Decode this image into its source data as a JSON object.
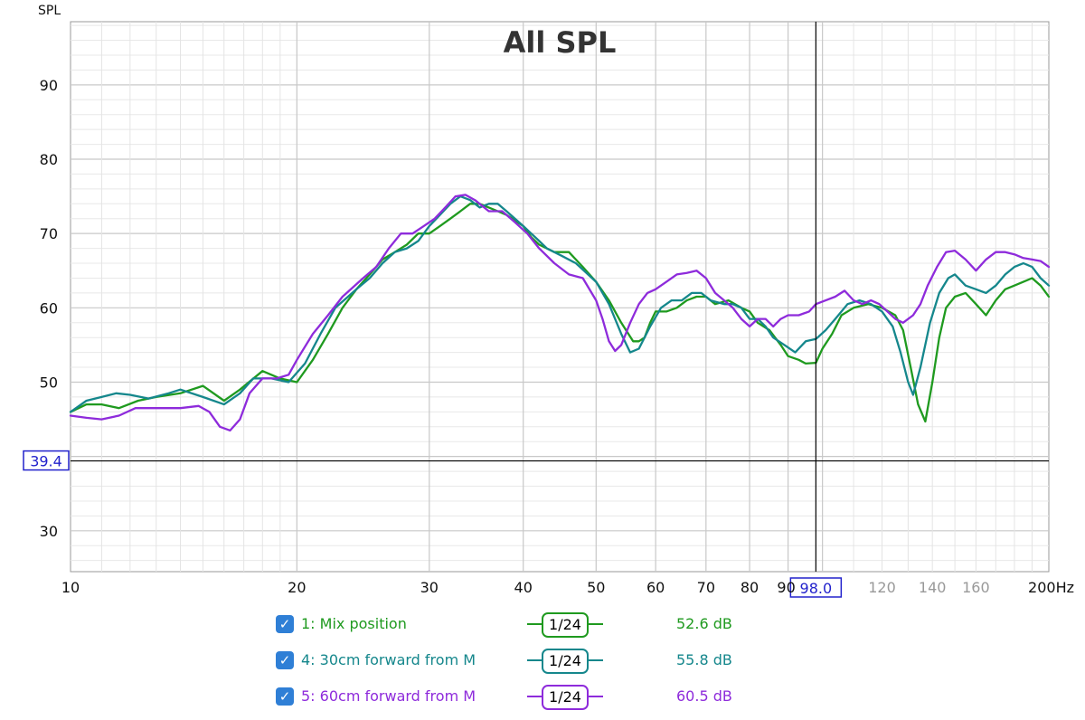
{
  "chart_data": {
    "type": "line",
    "title": "All SPL",
    "ylabel": "SPL",
    "x_unit": "Hz",
    "x_scale": "log",
    "xlim": [
      10,
      200
    ],
    "ylim": [
      24.5,
      98.5
    ],
    "grid": true,
    "x_ticks": [
      {
        "v": 10,
        "label": "10",
        "minor": false
      },
      {
        "v": 20,
        "label": "20",
        "minor": false
      },
      {
        "v": 30,
        "label": "30",
        "minor": false
      },
      {
        "v": 40,
        "label": "40",
        "minor": false
      },
      {
        "v": 50,
        "label": "50",
        "minor": false
      },
      {
        "v": 60,
        "label": "60",
        "minor": false
      },
      {
        "v": 70,
        "label": "70",
        "minor": false
      },
      {
        "v": 80,
        "label": "80",
        "minor": false
      },
      {
        "v": 90,
        "label": "90",
        "minor": false
      },
      {
        "v": 120,
        "label": "120",
        "minor": true
      },
      {
        "v": 140,
        "label": "140",
        "minor": true
      },
      {
        "v": 160,
        "label": "160",
        "minor": true
      },
      {
        "v": 200,
        "label": "200Hz",
        "minor": false
      }
    ],
    "y_ticks": [
      {
        "v": 30,
        "label": "30"
      },
      {
        "v": 50,
        "label": "50"
      },
      {
        "v": 60,
        "label": "60"
      },
      {
        "v": 70,
        "label": "70"
      },
      {
        "v": 80,
        "label": "80"
      },
      {
        "v": 90,
        "label": "90"
      }
    ],
    "cursor": {
      "x": 98.0,
      "x_label": "98.0",
      "y": 39.4,
      "y_label": "39.4"
    },
    "series": [
      {
        "name": "1: Mix position",
        "color": "#1f9a1f",
        "points": [
          [
            10,
            46
          ],
          [
            10.5,
            47
          ],
          [
            11,
            47
          ],
          [
            11.6,
            46.5
          ],
          [
            12.3,
            47.5
          ],
          [
            13,
            48
          ],
          [
            14,
            48.5
          ],
          [
            15,
            49.5
          ],
          [
            16,
            47.5
          ],
          [
            16.8,
            49
          ],
          [
            18,
            51.5
          ],
          [
            19,
            50.5
          ],
          [
            20,
            50
          ],
          [
            21,
            53
          ],
          [
            22,
            56.5
          ],
          [
            23,
            60
          ],
          [
            24,
            62.5
          ],
          [
            25,
            64.5
          ],
          [
            26,
            66.5
          ],
          [
            27,
            67.5
          ],
          [
            28,
            68.5
          ],
          [
            29,
            70
          ],
          [
            30,
            70
          ],
          [
            31,
            71
          ],
          [
            32,
            72
          ],
          [
            33,
            73
          ],
          [
            34,
            74
          ],
          [
            35,
            74
          ],
          [
            36,
            73.5
          ],
          [
            37,
            73
          ],
          [
            38,
            72.5
          ],
          [
            40,
            71
          ],
          [
            41,
            69.5
          ],
          [
            42,
            68.5
          ],
          [
            43,
            68
          ],
          [
            44,
            67.5
          ],
          [
            45,
            67.5
          ],
          [
            46,
            67.5
          ],
          [
            47,
            66.5
          ],
          [
            48,
            65.5
          ],
          [
            50,
            63.5
          ],
          [
            52,
            61
          ],
          [
            54,
            58
          ],
          [
            56,
            55.5
          ],
          [
            57,
            55.5
          ],
          [
            58,
            56
          ],
          [
            59,
            58
          ],
          [
            60,
            59.5
          ],
          [
            62,
            59.5
          ],
          [
            64,
            60
          ],
          [
            66,
            61
          ],
          [
            68,
            61.5
          ],
          [
            70,
            61.5
          ],
          [
            72,
            60.5
          ],
          [
            75,
            61
          ],
          [
            78,
            60
          ],
          [
            80,
            59.5
          ],
          [
            82,
            58
          ],
          [
            85,
            57
          ],
          [
            88,
            55
          ],
          [
            90,
            53.5
          ],
          [
            93,
            53
          ],
          [
            95,
            52.5
          ],
          [
            98,
            52.6
          ],
          [
            100,
            54.5
          ],
          [
            103,
            56.5
          ],
          [
            106,
            59
          ],
          [
            110,
            60
          ],
          [
            115,
            60.5
          ],
          [
            120,
            60
          ],
          [
            125,
            59
          ],
          [
            128,
            57
          ],
          [
            131,
            52
          ],
          [
            134,
            47
          ],
          [
            137,
            44.7
          ],
          [
            140,
            50
          ],
          [
            143,
            56
          ],
          [
            146,
            60
          ],
          [
            150,
            61.5
          ],
          [
            155,
            62
          ],
          [
            160,
            60.5
          ],
          [
            165,
            59
          ],
          [
            170,
            61
          ],
          [
            175,
            62.5
          ],
          [
            180,
            63
          ],
          [
            185,
            63.5
          ],
          [
            190,
            64
          ],
          [
            195,
            63
          ],
          [
            200,
            61.5
          ]
        ]
      },
      {
        "name": "4: 30cm forward from M",
        "color": "#15878c",
        "points": [
          [
            10,
            46
          ],
          [
            10.5,
            47.5
          ],
          [
            11,
            48
          ],
          [
            11.5,
            48.5
          ],
          [
            12,
            48.3
          ],
          [
            12.7,
            47.8
          ],
          [
            13.5,
            48.5
          ],
          [
            14,
            49
          ],
          [
            15,
            48
          ],
          [
            16,
            47
          ],
          [
            16.8,
            48.5
          ],
          [
            17.5,
            50.5
          ],
          [
            18.5,
            50.5
          ],
          [
            19.5,
            50
          ],
          [
            20.5,
            52.5
          ],
          [
            21.5,
            56.5
          ],
          [
            22.5,
            60
          ],
          [
            24,
            62.5
          ],
          [
            25,
            64
          ],
          [
            26,
            66
          ],
          [
            27,
            67.5
          ],
          [
            28,
            68
          ],
          [
            29,
            69
          ],
          [
            30,
            71
          ],
          [
            31,
            72.5
          ],
          [
            32,
            74
          ],
          [
            33,
            75
          ],
          [
            34,
            74.5
          ],
          [
            35,
            73.5
          ],
          [
            36,
            74
          ],
          [
            37,
            74
          ],
          [
            38,
            73
          ],
          [
            40,
            71
          ],
          [
            42,
            69
          ],
          [
            43,
            68
          ],
          [
            45,
            67
          ],
          [
            47,
            66
          ],
          [
            50,
            63.5
          ],
          [
            52,
            60.5
          ],
          [
            54,
            56.5
          ],
          [
            55.5,
            54
          ],
          [
            57,
            54.5
          ],
          [
            59,
            57.5
          ],
          [
            61,
            60
          ],
          [
            63,
            61
          ],
          [
            65,
            61
          ],
          [
            67,
            62
          ],
          [
            69,
            62
          ],
          [
            71,
            61
          ],
          [
            74,
            60.5
          ],
          [
            76,
            60.5
          ],
          [
            78,
            60
          ],
          [
            80,
            58.5
          ],
          [
            82,
            58.5
          ],
          [
            84,
            57.5
          ],
          [
            86,
            56
          ],
          [
            89,
            55
          ],
          [
            92,
            54
          ],
          [
            95,
            55.5
          ],
          [
            98,
            55.8
          ],
          [
            101,
            57
          ],
          [
            104,
            58.5
          ],
          [
            108,
            60.5
          ],
          [
            112,
            61
          ],
          [
            116,
            60.5
          ],
          [
            120,
            59.5
          ],
          [
            124,
            57.5
          ],
          [
            127,
            54
          ],
          [
            130,
            50
          ],
          [
            132,
            48.3
          ],
          [
            135,
            52
          ],
          [
            139,
            58
          ],
          [
            143,
            62
          ],
          [
            147,
            64
          ],
          [
            150,
            64.5
          ],
          [
            155,
            63
          ],
          [
            160,
            62.5
          ],
          [
            165,
            62
          ],
          [
            170,
            63
          ],
          [
            175,
            64.5
          ],
          [
            180,
            65.5
          ],
          [
            185,
            66
          ],
          [
            190,
            65.5
          ],
          [
            195,
            64
          ],
          [
            200,
            63
          ]
        ]
      },
      {
        "name": "5: 60cm forward from M",
        "color": "#8e2bdb",
        "points": [
          [
            10,
            45.5
          ],
          [
            10.5,
            45.2
          ],
          [
            11,
            45
          ],
          [
            11.6,
            45.5
          ],
          [
            12.2,
            46.5
          ],
          [
            13,
            46.5
          ],
          [
            14,
            46.5
          ],
          [
            14.8,
            46.8
          ],
          [
            15.3,
            46
          ],
          [
            15.8,
            44
          ],
          [
            16.3,
            43.5
          ],
          [
            16.8,
            45
          ],
          [
            17.3,
            48.5
          ],
          [
            18,
            50.5
          ],
          [
            18.8,
            50.5
          ],
          [
            19.5,
            51
          ],
          [
            20,
            53
          ],
          [
            21,
            56.5
          ],
          [
            22,
            59
          ],
          [
            23,
            61.5
          ],
          [
            24.5,
            64
          ],
          [
            25.5,
            65.5
          ],
          [
            26.5,
            68
          ],
          [
            27.5,
            70
          ],
          [
            28.5,
            70
          ],
          [
            29.5,
            71
          ],
          [
            30.5,
            72
          ],
          [
            31.5,
            73.5
          ],
          [
            32.5,
            75
          ],
          [
            33.5,
            75.2
          ],
          [
            34.5,
            74.5
          ],
          [
            36,
            73
          ],
          [
            37.5,
            73
          ],
          [
            39,
            71.5
          ],
          [
            40.5,
            70
          ],
          [
            42,
            68
          ],
          [
            44,
            66
          ],
          [
            46,
            64.5
          ],
          [
            48,
            64
          ],
          [
            50,
            61
          ],
          [
            51,
            58.5
          ],
          [
            52,
            55.5
          ],
          [
            53,
            54.2
          ],
          [
            54,
            55
          ],
          [
            55.5,
            58
          ],
          [
            57,
            60.5
          ],
          [
            58.5,
            62
          ],
          [
            60,
            62.5
          ],
          [
            62,
            63.5
          ],
          [
            64,
            64.5
          ],
          [
            66,
            64.7
          ],
          [
            68,
            65
          ],
          [
            70,
            64
          ],
          [
            72,
            62
          ],
          [
            74,
            61
          ],
          [
            76,
            60
          ],
          [
            78,
            58.5
          ],
          [
            80,
            57.5
          ],
          [
            82,
            58.5
          ],
          [
            84,
            58.5
          ],
          [
            86,
            57.5
          ],
          [
            88,
            58.5
          ],
          [
            90,
            59
          ],
          [
            93,
            59
          ],
          [
            96,
            59.5
          ],
          [
            98,
            60.5
          ],
          [
            101,
            61
          ],
          [
            104,
            61.5
          ],
          [
            107,
            62.3
          ],
          [
            110,
            61
          ],
          [
            113,
            60.5
          ],
          [
            116,
            61
          ],
          [
            119,
            60.5
          ],
          [
            122,
            59.5
          ],
          [
            125,
            58.5
          ],
          [
            128,
            58
          ],
          [
            132,
            59
          ],
          [
            135,
            60.5
          ],
          [
            138,
            63
          ],
          [
            142,
            65.5
          ],
          [
            146,
            67.5
          ],
          [
            150,
            67.7
          ],
          [
            155,
            66.5
          ],
          [
            160,
            65
          ],
          [
            165,
            66.5
          ],
          [
            170,
            67.5
          ],
          [
            175,
            67.5
          ],
          [
            180,
            67.2
          ],
          [
            185,
            66.7
          ],
          [
            190,
            66.5
          ],
          [
            195,
            66.3
          ],
          [
            200,
            65.5
          ]
        ]
      }
    ]
  },
  "legend": [
    {
      "label": "1: Mix position",
      "color": "#1f9a1f",
      "checked": true,
      "smoothing_num": "1",
      "smoothing_den": "24",
      "readout": "52.6 dB"
    },
    {
      "label": "4: 30cm forward from M",
      "color": "#15878c",
      "checked": true,
      "smoothing_num": "1",
      "smoothing_den": "24",
      "readout": "55.8 dB"
    },
    {
      "label": "5: 60cm forward from M",
      "color": "#8e2bdb",
      "checked": true,
      "smoothing_num": "1",
      "smoothing_den": "24",
      "readout": "60.5 dB"
    }
  ]
}
